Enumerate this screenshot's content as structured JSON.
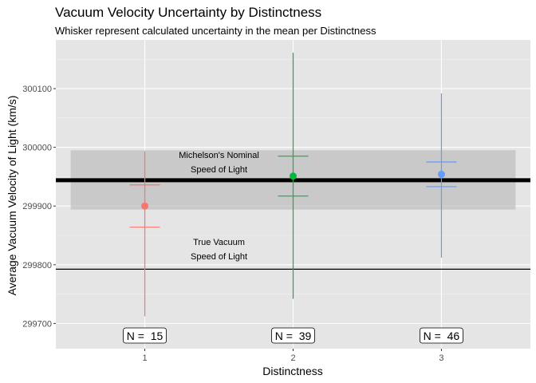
{
  "chart_data": {
    "type": "scatter",
    "title": "Vacuum Velocity Uncertainty by Distinctness",
    "subtitle": "Whisker represent calculated uncertainty in the mean per Distinctness",
    "xlabel": "Distinctness",
    "ylabel": "Average Vacuum Velocity of Light (km/s)",
    "x_categories": [
      "1",
      "2",
      "3"
    ],
    "y_ticks": [
      299700,
      299800,
      299900,
      300000,
      300100
    ],
    "y_tick_labels": [
      "299700",
      "299800",
      "299900",
      "300000",
      "300100"
    ],
    "ylim": [
      299657,
      300183
    ],
    "grid": true,
    "points": [
      {
        "x": 1,
        "y": 299900,
        "lower": 299712,
        "upper": 299993,
        "cap_lower": 299864,
        "cap_upper": 299936,
        "color": "#F8766D",
        "n_label": "N =  15"
      },
      {
        "x": 2,
        "y": 299951,
        "lower": 299742,
        "upper": 300161,
        "cap_lower": 299917,
        "cap_upper": 299985,
        "color": "#00BA38",
        "n_label": "N =  39"
      },
      {
        "x": 3,
        "y": 299954,
        "lower": 299812,
        "upper": 300092,
        "cap_lower": 299933,
        "cap_upper": 299975,
        "color": "#619CFF",
        "n_label": "N =  46"
      }
    ],
    "nominal_line": {
      "y": 299944,
      "band": [
        299894,
        299995
      ],
      "label_line1": "Michelson's Nominal",
      "label_line2": "Speed of Light"
    },
    "true_line": {
      "y": 299792.458,
      "label_line1": "True Vacuum",
      "label_line2": "Speed of Light"
    }
  }
}
